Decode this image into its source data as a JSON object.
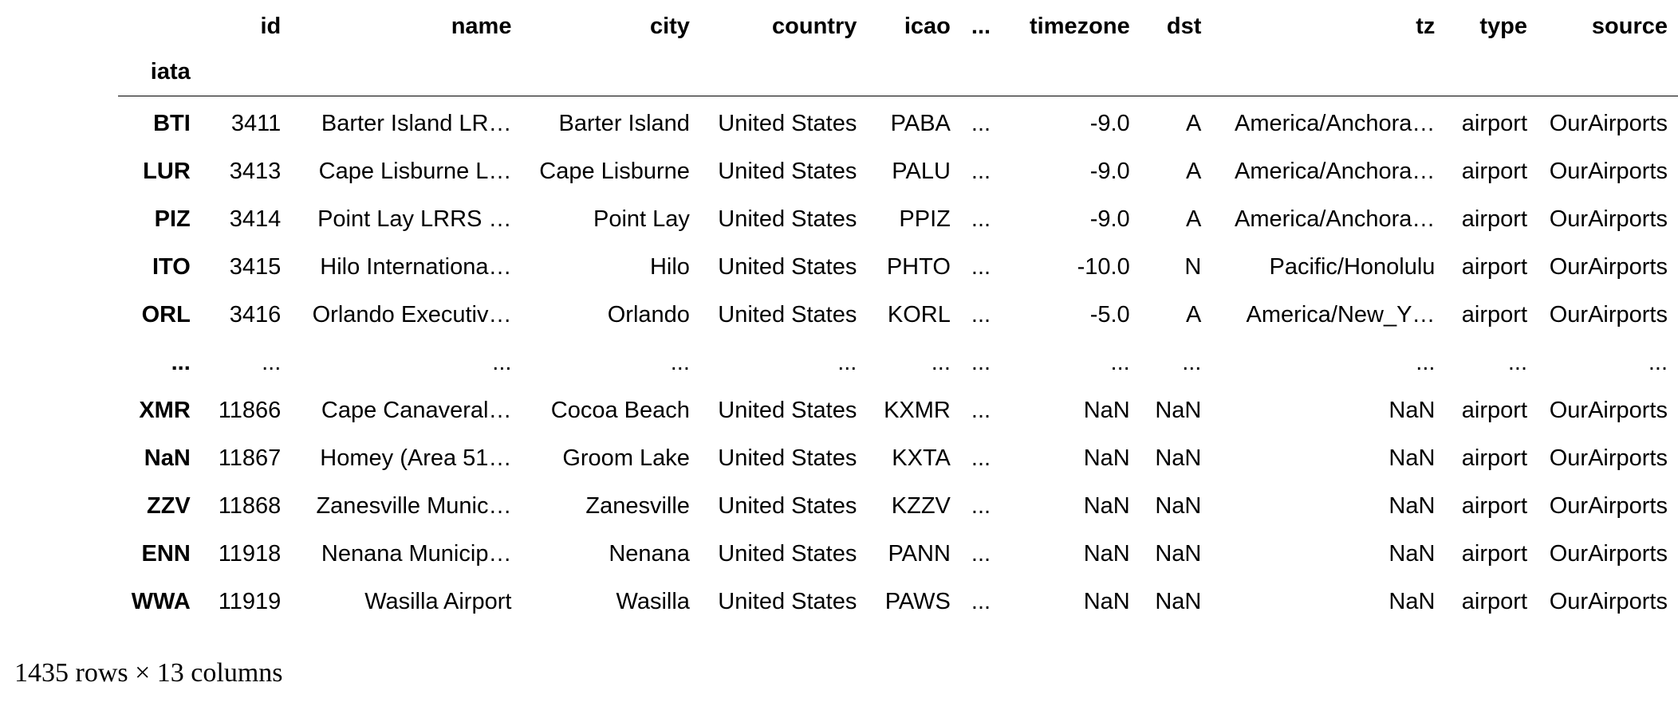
{
  "table": {
    "columns": [
      "id",
      "name",
      "city",
      "country",
      "icao",
      "...",
      "timezone",
      "dst",
      "tz",
      "type",
      "source"
    ],
    "index_name": "iata",
    "rows": [
      {
        "index": "BTI",
        "cells": [
          "3411",
          "Barter Island LR…",
          "Barter Island",
          "United States",
          "PABA",
          "...",
          "-9.0",
          "A",
          "America/Anchora…",
          "airport",
          "OurAirports"
        ]
      },
      {
        "index": "LUR",
        "cells": [
          "3413",
          "Cape Lisburne L…",
          "Cape Lisburne",
          "United States",
          "PALU",
          "...",
          "-9.0",
          "A",
          "America/Anchora…",
          "airport",
          "OurAirports"
        ]
      },
      {
        "index": "PIZ",
        "cells": [
          "3414",
          "Point Lay LRRS …",
          "Point Lay",
          "United States",
          "PPIZ",
          "...",
          "-9.0",
          "A",
          "America/Anchora…",
          "airport",
          "OurAirports"
        ]
      },
      {
        "index": "ITO",
        "cells": [
          "3415",
          "Hilo Internationa…",
          "Hilo",
          "United States",
          "PHTO",
          "...",
          "-10.0",
          "N",
          "Pacific/Honolulu",
          "airport",
          "OurAirports"
        ]
      },
      {
        "index": "ORL",
        "cells": [
          "3416",
          "Orlando Executiv…",
          "Orlando",
          "United States",
          "KORL",
          "...",
          "-5.0",
          "A",
          "America/New_Y…",
          "airport",
          "OurAirports"
        ]
      },
      {
        "index": "...",
        "cells": [
          "...",
          "...",
          "...",
          "...",
          "...",
          "...",
          "...",
          "...",
          "...",
          "...",
          "..."
        ]
      },
      {
        "index": "XMR",
        "cells": [
          "11866",
          "Cape Canaveral…",
          "Cocoa Beach",
          "United States",
          "KXMR",
          "...",
          "NaN",
          "NaN",
          "NaN",
          "airport",
          "OurAirports"
        ]
      },
      {
        "index": "NaN",
        "cells": [
          "11867",
          "Homey (Area 51…",
          "Groom Lake",
          "United States",
          "KXTA",
          "...",
          "NaN",
          "NaN",
          "NaN",
          "airport",
          "OurAirports"
        ]
      },
      {
        "index": "ZZV",
        "cells": [
          "11868",
          "Zanesville Munic…",
          "Zanesville",
          "United States",
          "KZZV",
          "...",
          "NaN",
          "NaN",
          "NaN",
          "airport",
          "OurAirports"
        ]
      },
      {
        "index": "ENN",
        "cells": [
          "11918",
          "Nenana Municip…",
          "Nenana",
          "United States",
          "PANN",
          "...",
          "NaN",
          "NaN",
          "NaN",
          "airport",
          "OurAirports"
        ]
      },
      {
        "index": "WWA",
        "cells": [
          "11919",
          "Wasilla Airport",
          "Wasilla",
          "United States",
          "PAWS",
          "...",
          "NaN",
          "NaN",
          "NaN",
          "airport",
          "OurAirports"
        ]
      }
    ]
  },
  "footer": {
    "shape": "1435 rows × 13 columns"
  }
}
